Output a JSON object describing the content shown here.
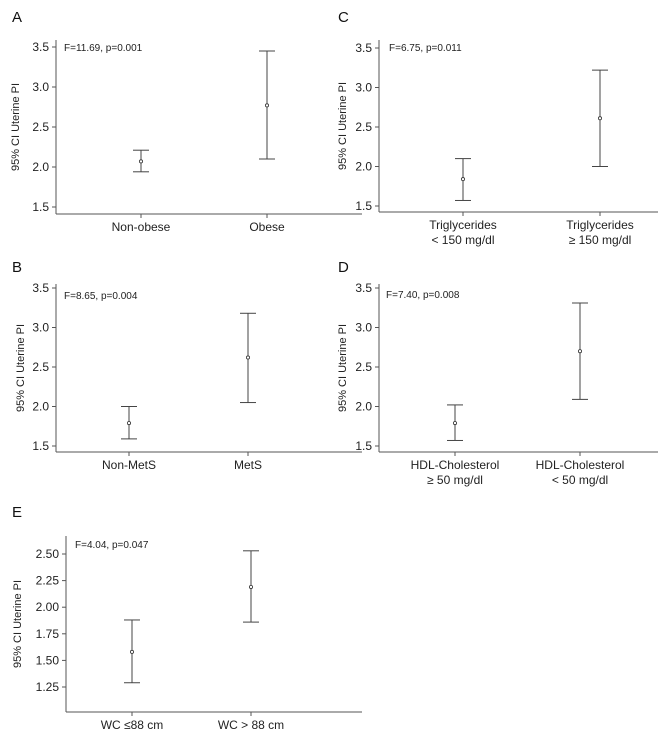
{
  "chart_data": [
    {
      "panel": "A",
      "type": "errorbar",
      "annotation": "F=11.69, p=0.001",
      "ylabel": "95% CI Uterine PI",
      "ylim": [
        1.5,
        3.5
      ],
      "yticks": [
        "1.5",
        "2.0",
        "2.5",
        "3.0",
        "3.5"
      ],
      "categories": [
        [
          "Non-obese"
        ],
        [
          "Obese"
        ]
      ],
      "means": [
        2.07,
        2.77
      ],
      "lower": [
        1.94,
        2.1
      ],
      "upper": [
        2.21,
        3.45
      ]
    },
    {
      "panel": "C",
      "type": "errorbar",
      "annotation": "F=6.75, p=0.011",
      "ylabel": "95% CI Uterine PI",
      "ylim": [
        1.5,
        3.5
      ],
      "yticks": [
        "1.5",
        "2.0",
        "2.5",
        "3.0",
        "3.5"
      ],
      "categories": [
        [
          "Triglycerides",
          "< 150 mg/dl"
        ],
        [
          "Triglycerides",
          "≥ 150 mg/dl"
        ]
      ],
      "means": [
        1.84,
        2.61
      ],
      "lower": [
        1.57,
        2.0
      ],
      "upper": [
        2.1,
        3.22
      ]
    },
    {
      "panel": "B",
      "type": "errorbar",
      "annotation": "F=8.65, p=0.004",
      "ylabel": "95% CI Uterine PI",
      "ylim": [
        1.5,
        3.5
      ],
      "yticks": [
        "1.5",
        "2.0",
        "2.5",
        "3.0",
        "3.5"
      ],
      "categories": [
        [
          "Non-MetS"
        ],
        [
          "MetS"
        ]
      ],
      "means": [
        1.79,
        2.62
      ],
      "lower": [
        1.59,
        2.05
      ],
      "upper": [
        2.0,
        3.18
      ]
    },
    {
      "panel": "D",
      "type": "errorbar",
      "annotation": "F=7.40, p=0.008",
      "ylabel": "95% CI Uterine PI",
      "ylim": [
        1.5,
        3.5
      ],
      "yticks": [
        "1.5",
        "2.0",
        "2.5",
        "3.0",
        "3.5"
      ],
      "categories": [
        [
          "HDL-Cholesterol",
          "≥ 50 mg/dl"
        ],
        [
          "HDL-Cholesterol",
          "< 50 mg/dl"
        ]
      ],
      "means": [
        1.79,
        2.7
      ],
      "lower": [
        1.57,
        2.09
      ],
      "upper": [
        2.02,
        3.31
      ]
    },
    {
      "panel": "E",
      "type": "errorbar",
      "annotation": "F=4.04, p=0.047",
      "ylabel": "95% CI Uterine PI",
      "ylim": [
        1.25,
        2.5
      ],
      "yticks": [
        "1.25",
        "1.50",
        "1.75",
        "2.00",
        "2.25",
        "2.50"
      ],
      "categories": [
        [
          "WC  ≤88 cm"
        ],
        [
          "WC > 88 cm"
        ]
      ],
      "means": [
        1.58,
        2.19
      ],
      "lower": [
        1.29,
        1.86
      ],
      "upper": [
        1.88,
        2.53
      ]
    }
  ]
}
